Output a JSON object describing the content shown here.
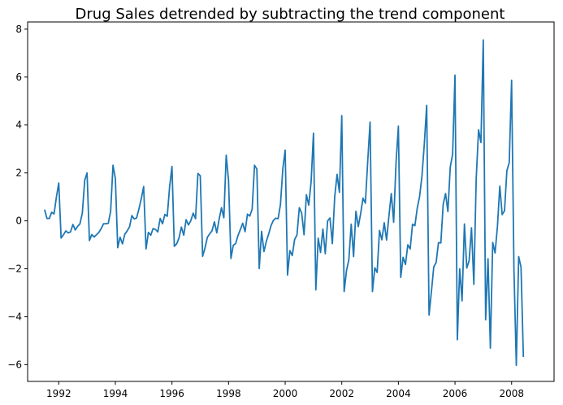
{
  "chart_data": {
    "type": "line",
    "title": "Drug Sales detrended by subtracting the trend component",
    "xlabel": "",
    "ylabel": "",
    "xlim": [
      1990.9,
      2009.5
    ],
    "ylim": [
      -6.7,
      8.3
    ],
    "xticks": [
      1992,
      1994,
      1996,
      1998,
      2000,
      2002,
      2004,
      2006,
      2008
    ],
    "yticks": [
      -6,
      -4,
      -2,
      0,
      2,
      4,
      6,
      8
    ],
    "x_start": 1991.5,
    "x_step": 0.08333,
    "grid": false,
    "legend": false,
    "series": [
      {
        "name": "detrended",
        "color": "#1f77b4",
        "values": [
          0.47,
          0.1,
          0.1,
          0.36,
          0.29,
          0.99,
          1.58,
          -0.72,
          -0.58,
          -0.42,
          -0.5,
          -0.46,
          -0.15,
          -0.38,
          -0.23,
          -0.12,
          0.33,
          1.69,
          2.0,
          -0.82,
          -0.57,
          -0.67,
          -0.58,
          -0.48,
          -0.32,
          -0.12,
          -0.12,
          -0.1,
          0.4,
          2.32,
          1.76,
          -1.12,
          -0.68,
          -0.96,
          -0.56,
          -0.42,
          -0.25,
          0.22,
          0.08,
          0.12,
          0.5,
          0.93,
          1.43,
          -1.17,
          -0.48,
          -0.6,
          -0.32,
          -0.36,
          -0.46,
          0.1,
          -0.12,
          0.27,
          0.19,
          1.42,
          2.27,
          -1.06,
          -0.96,
          -0.71,
          -0.26,
          -0.6,
          0.05,
          -0.17,
          0.01,
          0.32,
          0.09,
          1.98,
          1.88,
          -1.48,
          -1.14,
          -0.69,
          -0.54,
          -0.41,
          -0.04,
          -0.5,
          0.07,
          0.55,
          0.13,
          2.74,
          1.67,
          -1.57,
          -1.02,
          -0.95,
          -0.61,
          -0.36,
          -0.1,
          -0.45,
          0.28,
          0.2,
          0.49,
          2.32,
          2.16,
          -1.99,
          -0.44,
          -1.28,
          -0.86,
          -0.55,
          -0.2,
          0.02,
          0.11,
          0.09,
          0.68,
          2.17,
          2.95,
          -2.26,
          -1.24,
          -1.45,
          -0.78,
          -0.59,
          0.55,
          0.32,
          -0.58,
          1.09,
          0.66,
          1.63,
          3.66,
          -2.88,
          -0.72,
          -1.32,
          -0.34,
          -1.37,
          0.0,
          0.12,
          -0.95,
          1.0,
          1.94,
          1.19,
          4.39,
          -2.95,
          -2.08,
          -1.62,
          -0.14,
          -1.49,
          0.4,
          -0.24,
          0.3,
          0.95,
          0.74,
          2.48,
          4.12,
          -2.95,
          -1.96,
          -2.15,
          -0.4,
          -0.79,
          -0.08,
          -0.8,
          0.21,
          1.14,
          -0.06,
          2.42,
          3.95,
          -2.36,
          -1.52,
          -1.82,
          -1.0,
          -1.17,
          -0.14,
          -0.2,
          0.53,
          1.02,
          1.87,
          3.21,
          4.82,
          -3.93,
          -2.96,
          -1.92,
          -1.74,
          -0.91,
          -0.92,
          0.69,
          1.14,
          0.39,
          2.25,
          2.78,
          6.08,
          -4.96,
          -2.0,
          -3.34,
          -0.13,
          -1.97,
          -1.66,
          -0.29,
          -2.65,
          1.77,
          3.8,
          3.27,
          7.55,
          -4.13,
          -1.58,
          -5.31,
          -0.9,
          -1.34,
          -0.23,
          1.45,
          0.26,
          0.42,
          2.09,
          2.43,
          5.87,
          -2.02,
          -6.03,
          -1.49,
          -1.93,
          -5.68
        ]
      }
    ]
  }
}
